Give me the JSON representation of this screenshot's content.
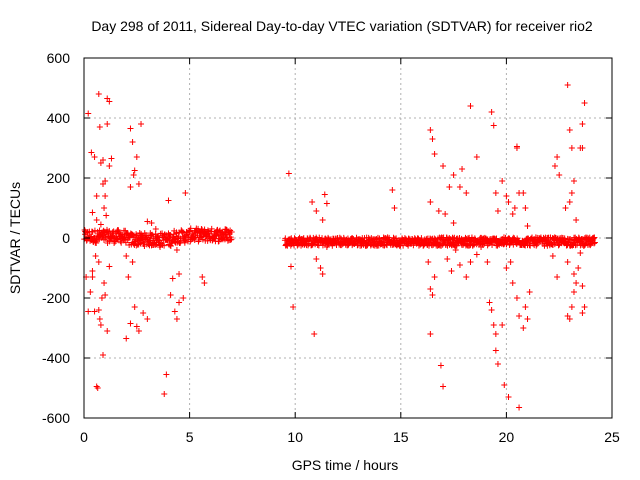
{
  "chart_data": {
    "type": "scatter",
    "title": "Day 298 of 2011, Sidereal Day-to-day VTEC variation (SDTVAR) for receiver rio2",
    "xlabel": "GPS time / hours",
    "ylabel": "SDTVAR / TECUs",
    "xlim": [
      0,
      25
    ],
    "ylim": [
      -600,
      600
    ],
    "xticks": [
      0,
      5,
      10,
      15,
      20,
      25
    ],
    "xtick_labels": [
      "0",
      "5",
      "10",
      "15",
      "20",
      "25"
    ],
    "yticks": [
      -600,
      -400,
      -200,
      0,
      200,
      400,
      600
    ],
    "ytick_labels": [
      "-600",
      "-400",
      "-200",
      "0",
      "200",
      "400",
      "600"
    ],
    "grid": true,
    "marker": "+",
    "color": "#ff0000",
    "series": [
      {
        "name": "SDTVAR",
        "dense_segments": [
          {
            "x_start": 0.0,
            "x_end": 7.0,
            "y_center": 5,
            "y_spread": 22
          },
          {
            "x_start": 9.5,
            "x_end": 24.2,
            "y_center": -12,
            "y_spread": 14
          }
        ],
        "points": [
          [
            0.2,
            415
          ],
          [
            0.35,
            285
          ],
          [
            0.5,
            270
          ],
          [
            0.6,
            140
          ],
          [
            0.7,
            480
          ],
          [
            0.75,
            370
          ],
          [
            0.8,
            250
          ],
          [
            0.9,
            260
          ],
          [
            1.0,
            190
          ],
          [
            1.1,
            380
          ],
          [
            1.1,
            465
          ],
          [
            1.2,
            455
          ],
          [
            0.9,
            180
          ],
          [
            1.0,
            140
          ],
          [
            0.95,
            100
          ],
          [
            1.05,
            75
          ],
          [
            1.2,
            240
          ],
          [
            1.3,
            265
          ],
          [
            0.6,
            60
          ],
          [
            0.8,
            45
          ],
          [
            0.4,
            85
          ],
          [
            2.2,
            365
          ],
          [
            2.3,
            320
          ],
          [
            2.4,
            225
          ],
          [
            2.5,
            270
          ],
          [
            2.6,
            180
          ],
          [
            2.7,
            380
          ],
          [
            2.2,
            170
          ],
          [
            2.35,
            210
          ],
          [
            3.2,
            50
          ],
          [
            3.0,
            55
          ],
          [
            3.4,
            30
          ],
          [
            4.0,
            125
          ],
          [
            4.8,
            150
          ],
          [
            0.1,
            -130
          ],
          [
            0.2,
            -245
          ],
          [
            0.3,
            -180
          ],
          [
            0.4,
            -130
          ],
          [
            0.5,
            -245
          ],
          [
            0.6,
            -495
          ],
          [
            0.65,
            -500
          ],
          [
            0.7,
            -240
          ],
          [
            0.8,
            -290
          ],
          [
            0.9,
            -390
          ],
          [
            0.75,
            -270
          ],
          [
            0.85,
            -200
          ],
          [
            1.0,
            -190
          ],
          [
            1.1,
            -310
          ],
          [
            0.95,
            -150
          ],
          [
            0.4,
            -110
          ],
          [
            0.55,
            -60
          ],
          [
            0.7,
            -80
          ],
          [
            1.2,
            -95
          ],
          [
            2.0,
            -335
          ],
          [
            2.1,
            -130
          ],
          [
            2.2,
            -285
          ],
          [
            2.4,
            -230
          ],
          [
            2.5,
            -295
          ],
          [
            2.6,
            -310
          ],
          [
            2.8,
            -250
          ],
          [
            3.0,
            -270
          ],
          [
            2.3,
            -80
          ],
          [
            2.0,
            -60
          ],
          [
            3.6,
            -30
          ],
          [
            3.9,
            -455
          ],
          [
            3.8,
            -520
          ],
          [
            4.1,
            -190
          ],
          [
            4.3,
            -245
          ],
          [
            4.4,
            -270
          ],
          [
            4.5,
            -215
          ],
          [
            4.7,
            -200
          ],
          [
            4.2,
            -135
          ],
          [
            4.5,
            -120
          ],
          [
            5.6,
            -130
          ],
          [
            5.7,
            -150
          ],
          [
            4.4,
            -40
          ],
          [
            9.7,
            215
          ],
          [
            9.8,
            -95
          ],
          [
            9.9,
            -230
          ],
          [
            10.8,
            120
          ],
          [
            11.0,
            90
          ],
          [
            11.4,
            145
          ],
          [
            11.5,
            115
          ],
          [
            11.3,
            60
          ],
          [
            10.9,
            -320
          ],
          [
            11.2,
            -100
          ],
          [
            11.3,
            -120
          ],
          [
            11.5,
            -30
          ],
          [
            11.0,
            -70
          ],
          [
            14.6,
            160
          ],
          [
            14.7,
            100
          ],
          [
            16.4,
            360
          ],
          [
            16.5,
            330
          ],
          [
            16.6,
            280
          ],
          [
            17.0,
            240
          ],
          [
            17.3,
            170
          ],
          [
            17.5,
            210
          ],
          [
            17.8,
            170
          ],
          [
            17.9,
            230
          ],
          [
            18.3,
            440
          ],
          [
            18.6,
            270
          ],
          [
            18.1,
            150
          ],
          [
            16.8,
            90
          ],
          [
            17.1,
            80
          ],
          [
            17.5,
            50
          ],
          [
            16.4,
            120
          ],
          [
            16.3,
            -80
          ],
          [
            16.4,
            -170
          ],
          [
            16.5,
            -190
          ],
          [
            16.4,
            -320
          ],
          [
            16.6,
            -130
          ],
          [
            16.9,
            -425
          ],
          [
            17.0,
            -495
          ],
          [
            17.2,
            -70
          ],
          [
            17.4,
            -110
          ],
          [
            17.6,
            -40
          ],
          [
            17.8,
            -90
          ],
          [
            18.1,
            -130
          ],
          [
            18.3,
            -80
          ],
          [
            18.6,
            -55
          ],
          [
            18.8,
            -30
          ],
          [
            19.3,
            420
          ],
          [
            19.4,
            375
          ],
          [
            19.8,
            190
          ],
          [
            20.0,
            140
          ],
          [
            20.1,
            120
          ],
          [
            19.5,
            150
          ],
          [
            19.6,
            90
          ],
          [
            20.3,
            80
          ],
          [
            20.4,
            100
          ],
          [
            20.5,
            300
          ],
          [
            20.5,
            305
          ],
          [
            20.8,
            150
          ],
          [
            20.9,
            100
          ],
          [
            20.6,
            150
          ],
          [
            21.0,
            40
          ],
          [
            19.1,
            -80
          ],
          [
            19.2,
            -215
          ],
          [
            19.3,
            -240
          ],
          [
            19.4,
            -290
          ],
          [
            19.5,
            -320
          ],
          [
            19.5,
            -375
          ],
          [
            19.6,
            -420
          ],
          [
            19.8,
            -290
          ],
          [
            19.9,
            -490
          ],
          [
            20.1,
            -530
          ],
          [
            20.0,
            -100
          ],
          [
            20.3,
            -150
          ],
          [
            20.5,
            -200
          ],
          [
            20.6,
            -260
          ],
          [
            20.6,
            -565
          ],
          [
            20.8,
            -300
          ],
          [
            20.9,
            -230
          ],
          [
            21.0,
            -270
          ],
          [
            21.1,
            -180
          ],
          [
            20.2,
            -80
          ],
          [
            22.3,
            240
          ],
          [
            22.4,
            270
          ],
          [
            22.5,
            210
          ],
          [
            22.8,
            100
          ],
          [
            22.9,
            510
          ],
          [
            23.0,
            360
          ],
          [
            23.1,
            300
          ],
          [
            23.2,
            190
          ],
          [
            23.1,
            150
          ],
          [
            23.0,
            120
          ],
          [
            23.6,
            380
          ],
          [
            23.7,
            450
          ],
          [
            23.6,
            300
          ],
          [
            23.5,
            300
          ],
          [
            23.3,
            60
          ],
          [
            22.2,
            -60
          ],
          [
            22.4,
            -130
          ],
          [
            22.9,
            -260
          ],
          [
            23.0,
            -270
          ],
          [
            23.1,
            -230
          ],
          [
            23.2,
            -180
          ],
          [
            23.3,
            -150
          ],
          [
            23.2,
            -120
          ],
          [
            23.4,
            -100
          ],
          [
            23.6,
            -250
          ],
          [
            23.7,
            -230
          ],
          [
            23.6,
            -160
          ],
          [
            22.9,
            -80
          ],
          [
            23.5,
            -50
          ]
        ]
      }
    ]
  }
}
